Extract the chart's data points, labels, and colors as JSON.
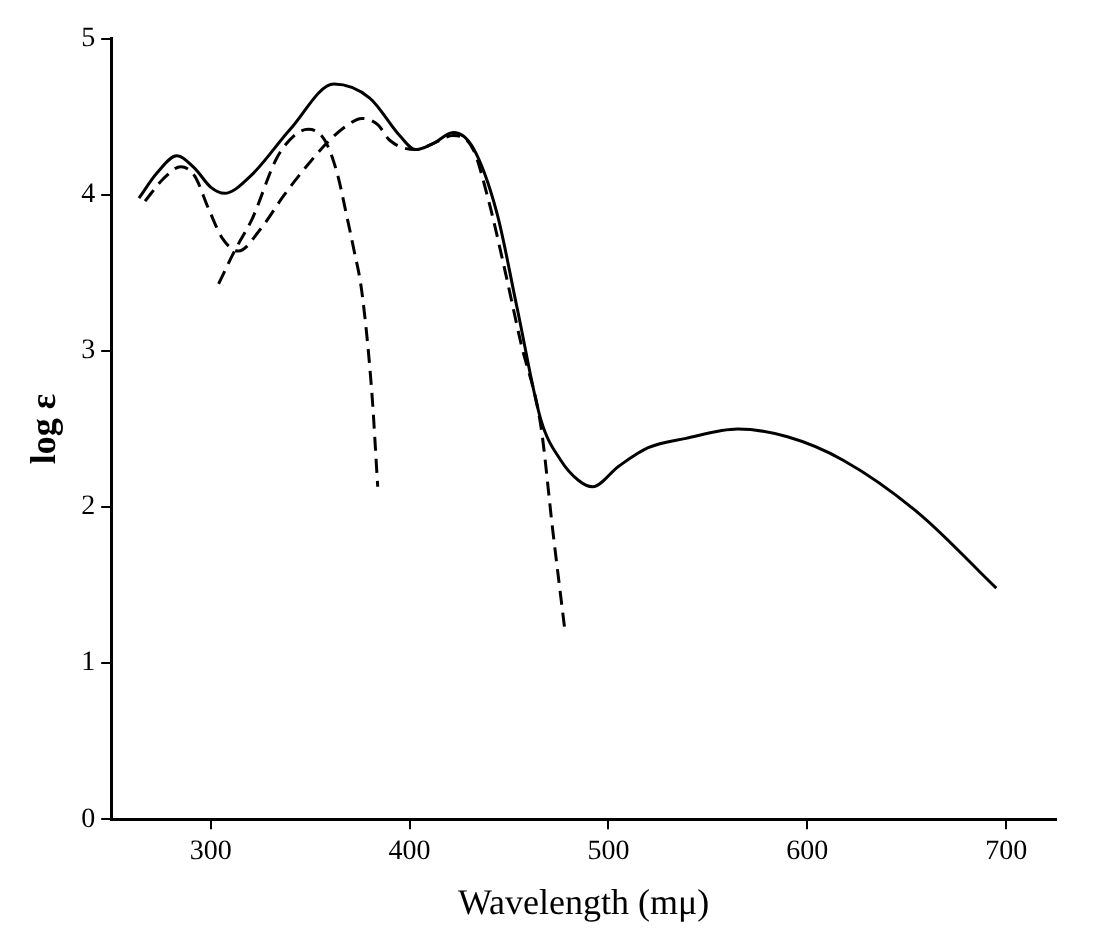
{
  "chart_data": {
    "type": "line",
    "xlabel": "Wavelength (mμ)",
    "ylabel": "log ε",
    "xlim": [
      250,
      725
    ],
    "xticks": [
      300,
      400,
      500,
      600,
      700
    ],
    "ylim": [
      0,
      5
    ],
    "yticks": [
      0,
      1,
      2,
      3,
      4,
      5
    ],
    "grid": false,
    "legend": false,
    "marker": "none",
    "series": [
      {
        "color": "#000000",
        "line_style": "solid",
        "x": [
          264,
          273,
          283,
          292,
          300,
          307,
          320,
          340,
          362,
          380,
          395,
          403,
          412,
          422,
          432,
          444,
          454,
          466,
          476,
          485,
          492,
          505,
          520,
          539,
          565,
          590,
          618,
          656,
          695
        ],
        "values": [
          3.98,
          4.14,
          4.25,
          4.17,
          4.05,
          4.01,
          4.12,
          4.42,
          4.71,
          4.62,
          4.38,
          4.29,
          4.33,
          4.4,
          4.3,
          3.88,
          3.28,
          2.56,
          2.3,
          2.17,
          2.13,
          2.26,
          2.38,
          2.44,
          2.5,
          2.45,
          2.3,
          1.96,
          1.48
        ]
      },
      {
        "color": "#000000",
        "line_style": "dashed",
        "x": [
          304,
          312,
          321,
          333,
          342,
          349,
          355,
          359,
          364,
          368,
          372,
          376,
          381,
          384
        ],
        "values": [
          3.43,
          3.64,
          3.85,
          4.23,
          4.38,
          4.42,
          4.39,
          4.31,
          4.12,
          3.89,
          3.65,
          3.38,
          2.74,
          2.13
        ]
      },
      {
        "color": "#000000",
        "line_style": "dashed",
        "x": [
          267,
          276,
          285,
          292,
          299,
          306,
          314,
          325,
          337,
          348,
          359,
          368,
          376,
          384,
          390,
          403,
          412,
          422,
          432,
          440,
          447,
          456,
          466,
          472,
          478
        ],
        "values": [
          3.96,
          4.1,
          4.18,
          4.12,
          3.91,
          3.72,
          3.64,
          3.78,
          4.0,
          4.18,
          4.34,
          4.44,
          4.49,
          4.45,
          4.35,
          4.29,
          4.33,
          4.38,
          4.29,
          3.95,
          3.57,
          3.05,
          2.52,
          1.85,
          1.22
        ]
      }
    ]
  }
}
